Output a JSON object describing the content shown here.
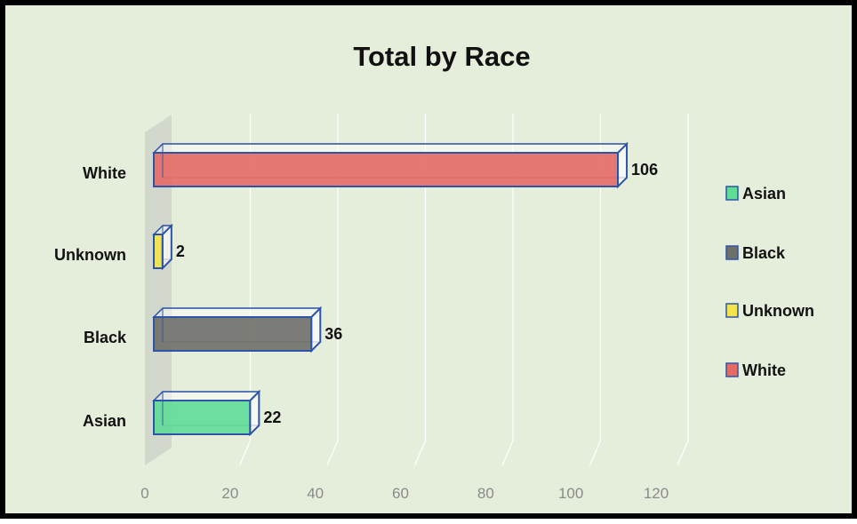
{
  "chart_data": {
    "type": "bar",
    "orientation": "horizontal",
    "style": "3d-clustered",
    "title": "Total by Race",
    "categories": [
      "Asian",
      "Black",
      "Unknown",
      "White"
    ],
    "values": [
      22,
      36,
      2,
      106
    ],
    "xlim": [
      0,
      120
    ],
    "xticks": [
      "0",
      "20",
      "40",
      "60",
      "80",
      "100",
      "120"
    ],
    "grid": true,
    "legend_position": "right",
    "colors": {
      "Asian": "#5fdc96",
      "Black": "#6f6f6a",
      "Unknown": "#f2e44a",
      "White": "#e46a66"
    },
    "legend": [
      "Asian",
      "Black",
      "Unknown",
      "White"
    ]
  },
  "palette": {
    "background": "#e5eedb",
    "border": "#000000",
    "bar_edge": "#2e54a8",
    "wall": "#d3d8cc"
  }
}
